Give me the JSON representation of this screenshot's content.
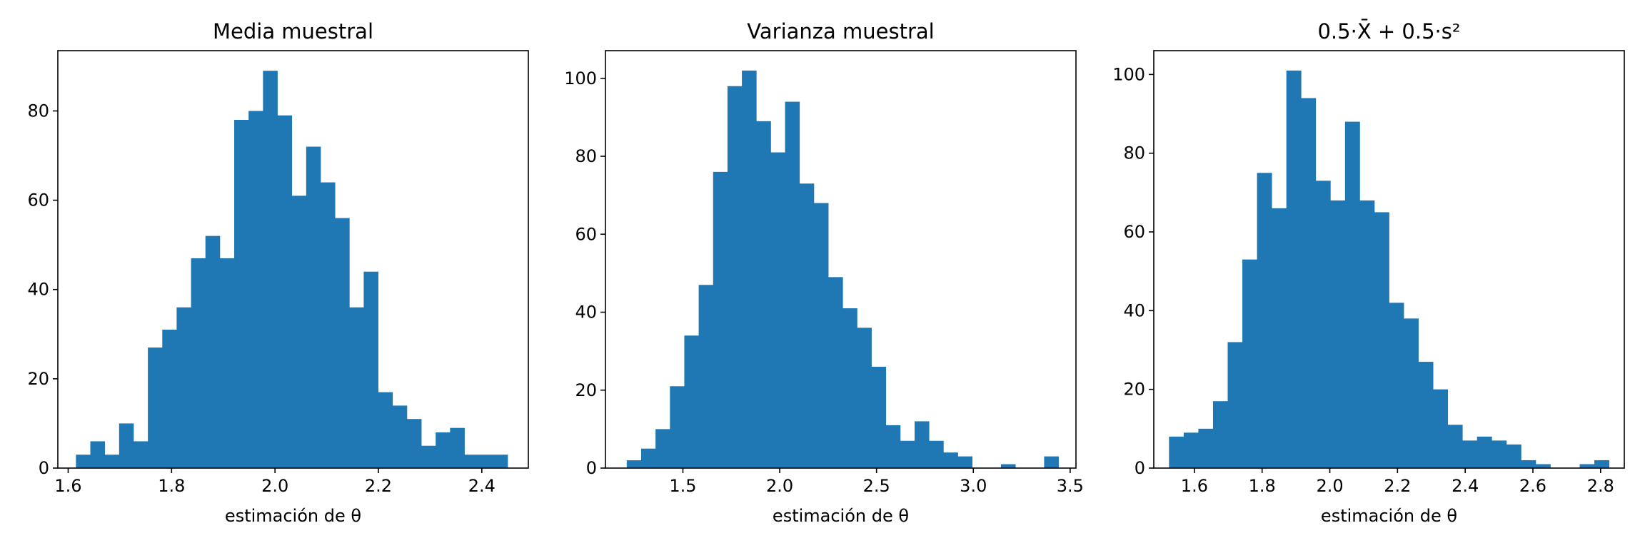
{
  "figure": {
    "background": "#ffffff",
    "bar_color": "#1f77b4"
  },
  "chart_data": [
    {
      "type": "bar",
      "title": "Media muestral",
      "xlabel": "estimación de θ",
      "ylabel": "",
      "xlim": [
        1.58,
        2.49
      ],
      "ylim": [
        0,
        93.5
      ],
      "xticks": [
        1.6,
        1.8,
        2.0,
        2.2,
        2.4
      ],
      "xtick_labels": [
        "1.6",
        "1.8",
        "2.0",
        "2.2",
        "2.4"
      ],
      "yticks": [
        0,
        20,
        40,
        60,
        80
      ],
      "ytick_labels": [
        "0",
        "20",
        "40",
        "60",
        "80"
      ],
      "bins": {
        "start": 1.615,
        "width": 0.02783
      },
      "values": [
        3,
        6,
        3,
        10,
        6,
        27,
        31,
        36,
        47,
        52,
        47,
        78,
        80,
        89,
        79,
        61,
        72,
        64,
        56,
        36,
        44,
        17,
        14,
        11,
        5,
        8,
        9,
        3,
        3,
        3
      ],
      "grid": false,
      "legend": "none"
    },
    {
      "type": "bar",
      "title": "Varianza muestral",
      "xlabel": "estimación de θ",
      "ylabel": "",
      "xlim": [
        1.1,
        3.53
      ],
      "ylim": [
        0,
        107.1
      ],
      "xticks": [
        1.5,
        2.0,
        2.5,
        3.0,
        3.5
      ],
      "xtick_labels": [
        "1.5",
        "2.0",
        "2.5",
        "3.0",
        "3.5"
      ],
      "yticks": [
        0,
        20,
        40,
        60,
        80,
        100
      ],
      "ytick_labels": [
        "0",
        "20",
        "40",
        "60",
        "80",
        "100"
      ],
      "bins": {
        "start": 1.21,
        "width": 0.07433
      },
      "values": [
        2,
        5,
        10,
        21,
        34,
        47,
        76,
        98,
        102,
        89,
        81,
        94,
        73,
        68,
        49,
        41,
        36,
        26,
        11,
        7,
        12,
        7,
        4,
        3,
        0,
        0,
        1,
        0,
        0,
        3
      ],
      "grid": false,
      "legend": "none"
    },
    {
      "type": "bar",
      "title": "0.5·X̄ + 0.5·s²",
      "xlabel": "estimación de θ",
      "ylabel": "",
      "xlim": [
        1.48,
        2.87
      ],
      "ylim": [
        0,
        106.05
      ],
      "xticks": [
        1.6,
        1.8,
        2.0,
        2.2,
        2.4,
        2.6,
        2.8
      ],
      "xtick_labels": [
        "1.6",
        "1.8",
        "2.0",
        "2.2",
        "2.4",
        "2.6",
        "2.8"
      ],
      "yticks": [
        0,
        20,
        40,
        60,
        80,
        100
      ],
      "ytick_labels": [
        "0",
        "20",
        "40",
        "60",
        "80",
        "100"
      ],
      "bins": {
        "start": 1.525,
        "width": 0.04333
      },
      "values": [
        8,
        9,
        10,
        17,
        32,
        53,
        75,
        66,
        101,
        94,
        73,
        68,
        88,
        68,
        65,
        42,
        38,
        27,
        20,
        11,
        7,
        8,
        7,
        6,
        2,
        1,
        0,
        0,
        1,
        2
      ],
      "grid": false,
      "legend": "none"
    }
  ]
}
